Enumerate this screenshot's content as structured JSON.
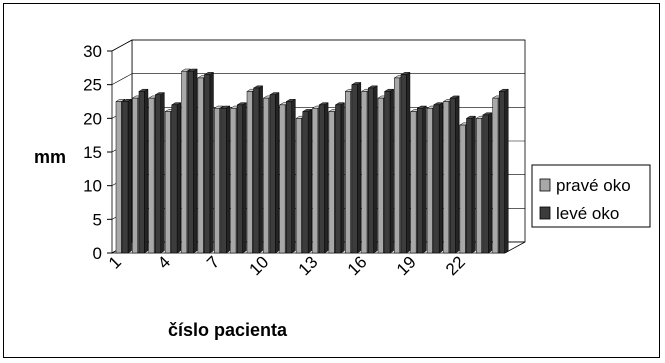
{
  "chart_data": {
    "type": "bar",
    "title": "",
    "ylabel": "mm",
    "xlabel": "číslo pacienta",
    "ylim": [
      0,
      30
    ],
    "yticks": [
      "0",
      "5",
      "10",
      "15",
      "20",
      "25",
      "30"
    ],
    "xtick_labels": [
      "1",
      "4",
      "7",
      "10",
      "13",
      "16",
      "19",
      "22"
    ],
    "categories": [
      "1",
      "2",
      "3",
      "4",
      "5",
      "6",
      "7",
      "8",
      "9",
      "10",
      "11",
      "12",
      "13",
      "14",
      "15",
      "16",
      "17",
      "18",
      "19",
      "20",
      "21",
      "22",
      "23",
      "24"
    ],
    "series": [
      {
        "name": "pravé oko",
        "color": "#a8a8a8",
        "values": [
          22.5,
          23,
          23,
          21,
          27,
          26,
          21.5,
          21.5,
          24,
          23,
          22,
          20,
          21.5,
          21,
          24,
          24,
          23,
          26,
          21,
          21.5,
          22.5,
          19,
          20,
          23
        ]
      },
      {
        "name": "levé oko",
        "color": "#3c3c3c",
        "values": [
          22.5,
          24,
          23.5,
          22,
          27,
          26.5,
          21.5,
          22,
          24.5,
          23.5,
          22.5,
          21,
          22,
          22,
          25,
          24.5,
          24,
          26.5,
          21.5,
          22,
          23,
          20,
          20.5,
          24
        ]
      }
    ],
    "legend_position": "right",
    "grid": true
  }
}
